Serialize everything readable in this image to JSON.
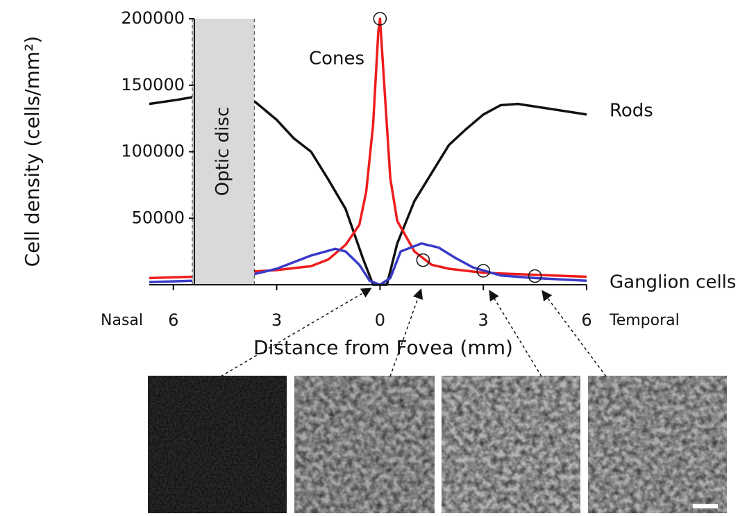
{
  "chart_data": {
    "type": "line",
    "y_label": "Cell density (cells/mm²)",
    "x_label": "Distance from Fovea (mm)",
    "x_left_label": "Nasal",
    "x_right_label": "Temporal",
    "region": {
      "label": "Optic disc",
      "range": [
        -5.45,
        -3.65
      ],
      "color": "#d9d9db"
    },
    "xlim": [
      -6.7,
      6
    ],
    "ylim": [
      0,
      200000
    ],
    "xticks": [
      {
        "value": -6,
        "label": "6"
      },
      {
        "value": -3,
        "label": "3"
      },
      0,
      3,
      6
    ],
    "yticks": [
      50000,
      100000,
      150000,
      200000
    ],
    "series": [
      {
        "name": "Rods",
        "color": "#111111",
        "x": [
          -6.7,
          -5.9,
          -5.45,
          -5.0,
          -3.65,
          -3,
          -2.5,
          -2,
          -1.5,
          -1,
          -0.5,
          -0.2,
          0,
          0.2,
          0.5,
          1,
          1.5,
          2,
          2.5,
          3,
          3.5,
          4,
          4.5,
          5,
          6
        ],
        "values": [
          136000,
          139000,
          141000,
          null,
          138000,
          124000,
          110000,
          100000,
          79000,
          57000,
          20000,
          0,
          0,
          0,
          31000,
          63000,
          84000,
          105000,
          117000,
          128000,
          135000,
          136000,
          134000,
          132000,
          128000
        ]
      },
      {
        "name": "Cones",
        "color": "#ee1c1c",
        "x": [
          -6.7,
          -5.45,
          -3.65,
          -3,
          -2,
          -1.5,
          -1,
          -0.6,
          -0.4,
          -0.2,
          -0.05,
          0,
          0.1,
          0.3,
          0.5,
          1,
          1.5,
          2,
          3,
          4,
          5,
          6
        ],
        "values": [
          5000,
          6000,
          10000,
          11000,
          14000,
          19000,
          30000,
          45000,
          70000,
          120000,
          190000,
          200000,
          160000,
          80000,
          48000,
          25000,
          15000,
          12000,
          9000,
          8000,
          7000,
          6000
        ]
      },
      {
        "name": "Ganglion cells",
        "color": "#3a3ac8",
        "x": [
          -6.7,
          -5.45,
          -3.65,
          -3,
          -2,
          -1.3,
          -1,
          -0.6,
          -0.3,
          0,
          0.3,
          0.6,
          1.2,
          1.7,
          2.2,
          2.7,
          3.5,
          4.5,
          6
        ],
        "values": [
          2000,
          3000,
          8000,
          12000,
          22000,
          27000,
          25000,
          15000,
          3000,
          0,
          5000,
          25000,
          31000,
          28000,
          20000,
          13000,
          7000,
          5000,
          3000
        ]
      }
    ],
    "markers": [
      {
        "x": 0,
        "y": 200000
      },
      {
        "x": 1.25,
        "y": 18500
      },
      {
        "x": 3,
        "y": 10500
      },
      {
        "x": 4.5,
        "y": 6500
      }
    ]
  }
}
